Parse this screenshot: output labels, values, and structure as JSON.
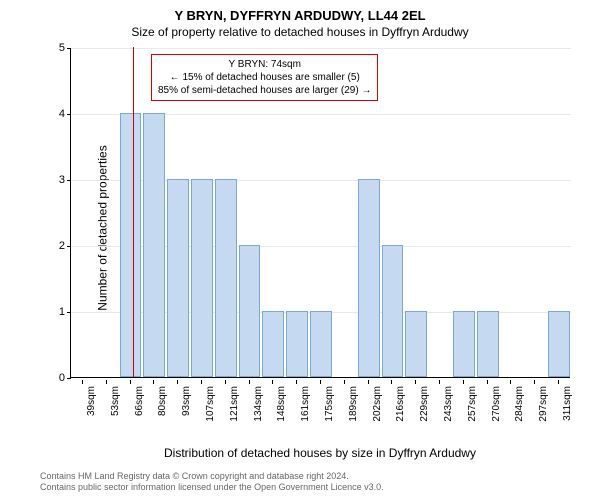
{
  "title": "Y BRYN, DYFFRYN ARDUDWY, LL44 2EL",
  "subtitle": "Size of property relative to detached houses in Dyffryn Ardudwy",
  "ylabel": "Number of detached properties",
  "xlabel": "Distribution of detached houses by size in Dyffryn Ardudwy",
  "chart": {
    "type": "histogram",
    "ylim": [
      0,
      5
    ],
    "ytick_step": 1,
    "bar_color": "#c5d9f1",
    "bar_border": "#7ba7d9",
    "grid_color": "#e8e8e8",
    "background_color": "#ffffff",
    "marker_color": "#d00000",
    "categories": [
      "39sqm",
      "53sqm",
      "66sqm",
      "80sqm",
      "93sqm",
      "107sqm",
      "121sqm",
      "134sqm",
      "148sqm",
      "161sqm",
      "175sqm",
      "189sqm",
      "202sqm",
      "216sqm",
      "229sqm",
      "243sqm",
      "257sqm",
      "270sqm",
      "284sqm",
      "297sqm",
      "311sqm"
    ],
    "values": [
      0,
      0,
      4,
      4,
      3,
      3,
      3,
      2,
      1,
      1,
      1,
      0,
      3,
      2,
      1,
      0,
      1,
      1,
      0,
      0,
      1
    ],
    "marker_x_index": 2.6,
    "annotation": {
      "title": "Y BRYN: 74sqm",
      "line1": "← 15% of detached houses are smaller (5)",
      "line2": "85% of semi-detached houses are larger (29) →"
    }
  },
  "footer_line1": "Contains HM Land Registry data © Crown copyright and database right 2024.",
  "footer_line2": "Contains public sector information licensed under the Open Government Licence v3.0."
}
